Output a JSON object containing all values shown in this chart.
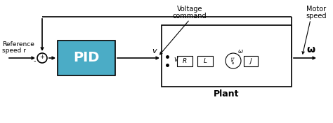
{
  "bg_color": "#ffffff",
  "pid_box_color": "#4bacc6",
  "pid_box_edge": "#000000",
  "plant_box_color": "#ffffff",
  "plant_box_edge": "#000000",
  "line_color": "#000000",
  "text_color": "#000000",
  "ref_label_line1": "Reference",
  "ref_label_line2": "speed r",
  "voltage_label_line1": "Voltage",
  "voltage_label_line2": "command",
  "motor_label_line1": "Motor",
  "motor_label_line2": "speed",
  "pid_label": "PID",
  "plant_label": "Plant",
  "v_label": "v",
  "omega_out": "ω",
  "minus_label": "-",
  "r_label": "R",
  "l_label": "L",
  "j_label": "J",
  "fig_w": 4.74,
  "fig_h": 1.76,
  "dpi": 100
}
